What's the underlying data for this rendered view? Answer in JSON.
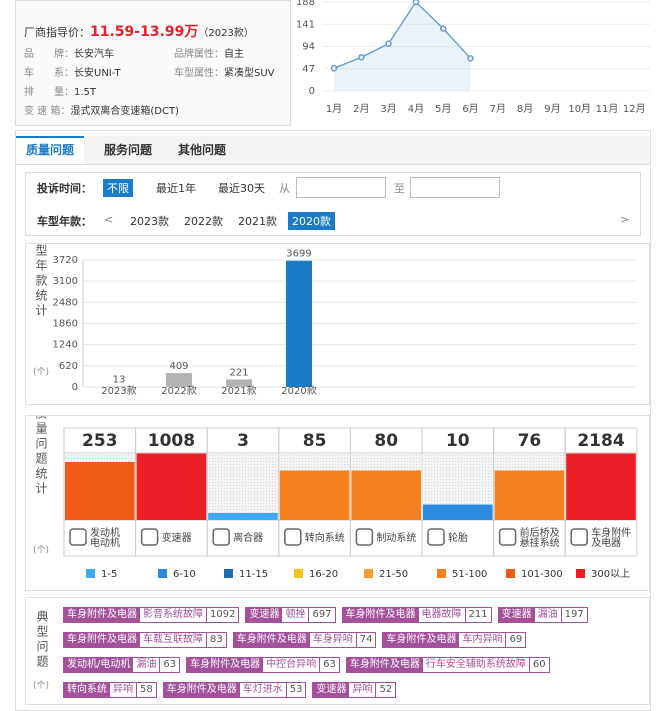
{
  "price": {
    "label": "厂商指导价：",
    "value": "11.59-13.99万",
    "year": "（2023款）"
  },
  "specs": [
    [
      {
        "label": "品　　牌：",
        "value": "长安汽车"
      },
      {
        "label": "品牌属性：",
        "value": "自主"
      }
    ],
    [
      {
        "label": "车　　系：",
        "value": "长安UNI-T"
      },
      {
        "label": "车型属性：",
        "value": "紧凑型SUV"
      }
    ],
    [
      {
        "label": "排　　量：",
        "value": "1.5T"
      }
    ],
    [
      {
        "label": "变 速 箱：",
        "value": "湿式双离合变速箱(DCT)"
      }
    ]
  ],
  "trend": {
    "type": "line",
    "categories": [
      "1月",
      "2月",
      "3月",
      "4月",
      "5月",
      "6月",
      "7月",
      "8月",
      "9月",
      "10月",
      "11月",
      "12月"
    ],
    "values": [
      48,
      71,
      100,
      188,
      132,
      69,
      null,
      null,
      null,
      null,
      null,
      null
    ],
    "ylim": [
      0,
      188
    ],
    "yticks": [
      0,
      47,
      94,
      141,
      188
    ],
    "color": "#5b9bd5",
    "grid": true
  },
  "tabs": {
    "items": [
      "质量问题",
      "服务问题",
      "其他问题"
    ],
    "active": 0
  },
  "filter": {
    "time_label": "投诉时间：",
    "time_options": [
      "不限",
      "最近1年",
      "最近30天"
    ],
    "time_active": 0,
    "from": "从",
    "to": "至",
    "year_label": "车型年款：",
    "prev": "<",
    "next": ">",
    "years": [
      "2023款",
      "2022款",
      "2021款",
      "2020款"
    ],
    "year_active": 3
  },
  "year_chart": {
    "type": "bar",
    "axis_label": "车型年款统计",
    "unit": "(个)",
    "categories": [
      "2023款",
      "2022款",
      "2021款",
      "2020款"
    ],
    "values": [
      13,
      409,
      221,
      3699
    ],
    "ylim": [
      0,
      3720
    ],
    "yticks": [
      0,
      620,
      1240,
      1860,
      2480,
      3100,
      3720
    ],
    "color": "#b3b3b3",
    "highlight_color": "#1a7cc7",
    "highlight": 3,
    "grid": true
  },
  "quality": {
    "axis_label": "质量问题统计",
    "unit": "(个)",
    "items": [
      {
        "label": [
          "发动机",
          "电动机"
        ],
        "value": 253,
        "color": "#f05a16"
      },
      {
        "label": [
          "变速器"
        ],
        "value": 1008,
        "color": "#ec1f27"
      },
      {
        "label": [
          "离合器"
        ],
        "value": 3,
        "color": "#3fa9f5"
      },
      {
        "label": [
          "转向系统"
        ],
        "value": 85,
        "color": "#f5801f"
      },
      {
        "label": [
          "制动系统"
        ],
        "value": 80,
        "color": "#f5801f"
      },
      {
        "label": [
          "轮胎"
        ],
        "value": 10,
        "color": "#2b8be0"
      },
      {
        "label": [
          "前后桥及",
          "悬挂系统"
        ],
        "value": 76,
        "color": "#f5801f"
      },
      {
        "label": [
          "车身附件",
          "及电器"
        ],
        "value": 2184,
        "color": "#ec1f27"
      }
    ],
    "legend": [
      {
        "label": "1-5",
        "color": "#3fa9f5"
      },
      {
        "label": "6-10",
        "color": "#2b8be0"
      },
      {
        "label": "11-15",
        "color": "#1a6fb8"
      },
      {
        "label": "16-20",
        "color": "#f7c21a"
      },
      {
        "label": "21-50",
        "color": "#f7a030"
      },
      {
        "label": "51-100",
        "color": "#f5801f"
      },
      {
        "label": "101-300",
        "color": "#f05a16"
      },
      {
        "label": "300以上",
        "color": "#ec1f27"
      }
    ]
  },
  "typical": {
    "label": "典型问题",
    "unit": "(个)",
    "rows": [
      [
        {
          "category": "车身附件及电器",
          "issue": "影音系统故障",
          "count": 1092
        },
        {
          "category": "变速器",
          "issue": "顿挫",
          "count": 697
        },
        {
          "category": "车身附件及电器",
          "issue": "电器故障",
          "count": 211
        },
        {
          "category": "变速器",
          "issue": "漏油",
          "count": 197
        }
      ],
      [
        {
          "category": "车身附件及电器",
          "issue": "车载互联故障",
          "count": 83
        },
        {
          "category": "车身附件及电器",
          "issue": "车身异响",
          "count": 74
        },
        {
          "category": "车身附件及电器",
          "issue": "车内异响",
          "count": 69
        }
      ],
      [
        {
          "category": "发动机/电动机",
          "issue": "漏油",
          "count": 63
        },
        {
          "category": "车身附件及电器",
          "issue": "中控台异响",
          "count": 63
        },
        {
          "category": "车身附件及电器",
          "issue": "行车安全辅助系统故障",
          "count": 60
        }
      ],
      [
        {
          "category": "转向系统",
          "issue": "异响",
          "count": 58
        },
        {
          "category": "车身附件及电器",
          "issue": "车灯进水",
          "count": 53
        },
        {
          "category": "变速器",
          "issue": "异响",
          "count": 52
        }
      ]
    ]
  }
}
